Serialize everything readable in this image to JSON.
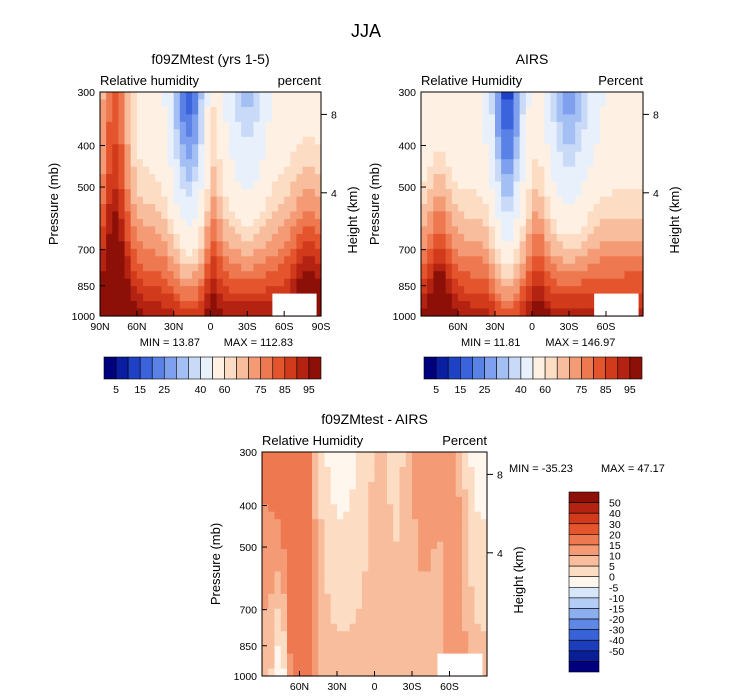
{
  "figure": {
    "title": "JJA"
  },
  "chart_data": [
    {
      "type": "heatmap",
      "title": "f09ZMtest (yrs 1-5)",
      "left_label": "Relative humidity",
      "right_label": "percent",
      "ylabel": "Pressure (mb)",
      "y2label": "Height (km)",
      "y_ticks": [
        "300",
        "400",
        "500",
        "700",
        "850",
        "1000"
      ],
      "y2_ticks": [
        "8",
        "4"
      ],
      "x_ticks": [
        "90N",
        "60N",
        "30N",
        "0",
        "30S",
        "60S",
        "90S"
      ],
      "min_text": "MIN =  13.87",
      "max_text": "MAX = 112.83",
      "colorbar": {
        "labels": [
          "5",
          "15",
          "25",
          "40",
          "60",
          "75",
          "85",
          "95"
        ],
        "levels": [
          5,
          10,
          15,
          20,
          25,
          30,
          35,
          40,
          50,
          60,
          65,
          70,
          75,
          80,
          85,
          90,
          95
        ],
        "colors": [
          "#00007f",
          "#0a1ea0",
          "#1f42c4",
          "#3a63dc",
          "#5a82e6",
          "#7ea0ee",
          "#a4bff4",
          "#c8daf8",
          "#e8f0fc",
          "#fff0e4",
          "#fddcc4",
          "#f8bd9c",
          "#f49a74",
          "#ee7850",
          "#e4552e",
          "#d23a1c",
          "#b42212",
          "#8c1008"
        ]
      },
      "field": {
        "x": [
          -90,
          90
        ],
        "p": [
          300,
          1000
        ]
      }
    },
    {
      "type": "heatmap",
      "title": "AIRS",
      "left_label": "Relative Humidity",
      "right_label": "Percent",
      "ylabel": "Pressure (mb)",
      "y2label": "Height (km)",
      "y_ticks": [
        "300",
        "400",
        "500",
        "700",
        "850",
        "1000"
      ],
      "y2_ticks": [
        "8",
        "4"
      ],
      "x_ticks": [
        "60N",
        "30N",
        "0",
        "30S",
        "60S"
      ],
      "min_text": "MIN =  11.81",
      "max_text": "MAX = 146.97",
      "colorbar": {
        "labels": [
          "5",
          "15",
          "25",
          "40",
          "60",
          "75",
          "85",
          "95"
        ],
        "levels": [
          5,
          10,
          15,
          20,
          25,
          30,
          35,
          40,
          50,
          60,
          65,
          70,
          75,
          80,
          85,
          90,
          95
        ],
        "colors": [
          "#00007f",
          "#0a1ea0",
          "#1f42c4",
          "#3a63dc",
          "#5a82e6",
          "#7ea0ee",
          "#a4bff4",
          "#c8daf8",
          "#e8f0fc",
          "#fff0e4",
          "#fddcc4",
          "#f8bd9c",
          "#f49a74",
          "#ee7850",
          "#e4552e",
          "#d23a1c",
          "#b42212",
          "#8c1008"
        ]
      },
      "field": {
        "x": [
          -90,
          90
        ],
        "p": [
          300,
          1000
        ]
      }
    },
    {
      "type": "heatmap",
      "title": "f09ZMtest - AIRS",
      "left_label": "Relative Humidity",
      "right_label": "Percent",
      "ylabel": "Pressure (mb)",
      "y2label": "Height (km)",
      "y_ticks": [
        "300",
        "400",
        "500",
        "700",
        "850",
        "1000"
      ],
      "y2_ticks": [
        "8",
        "4"
      ],
      "x_ticks": [
        "60N",
        "30N",
        "0",
        "30S",
        "60S"
      ],
      "min_text": "MIN = -35.23",
      "max_text": "MAX =  47.17",
      "colorbar": {
        "labels": [
          "50",
          "40",
          "30",
          "20",
          "15",
          "10",
          "5",
          "0",
          "-5",
          "-10",
          "-15",
          "-20",
          "-30",
          "-40",
          "-50"
        ],
        "colors": [
          "#8c1008",
          "#b42212",
          "#d23a1c",
          "#e4552e",
          "#ee7850",
          "#f49a74",
          "#f8bd9c",
          "#fddcc4",
          "#fff6ee",
          "#d8e6fa",
          "#b4cdf4",
          "#8cadee",
          "#5f88e6",
          "#3962d8",
          "#1c3eba",
          "#0a1e98",
          "#00007f"
        ]
      },
      "field": {
        "x": [
          -90,
          90
        ],
        "p": [
          300,
          1000
        ]
      }
    }
  ]
}
